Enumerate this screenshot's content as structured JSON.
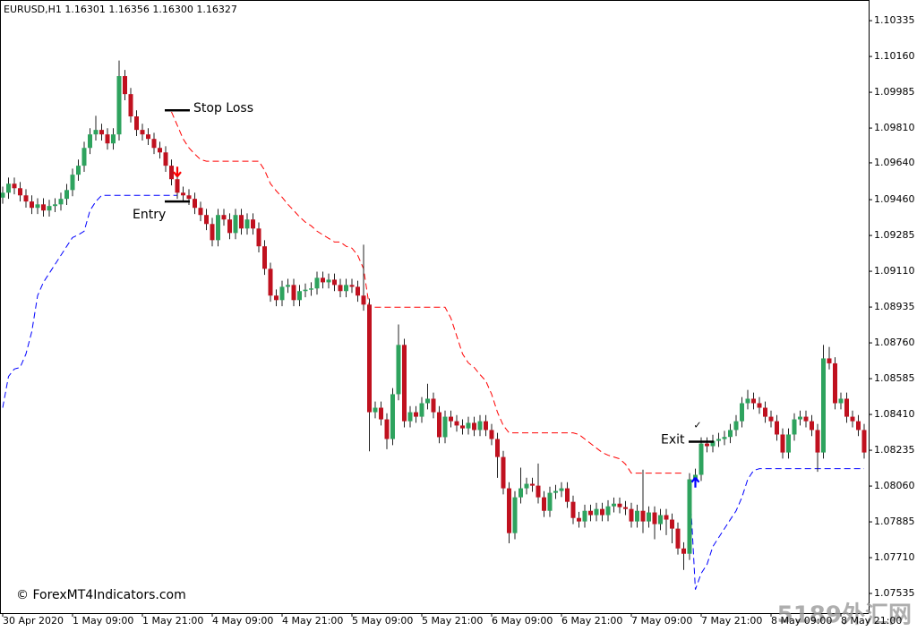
{
  "chart_data": {
    "type": "candlestick",
    "title": "EURUSD,H1  1.16301 1.16356 1.16300 1.16327",
    "up_color": "#2ea35e",
    "down_color": "#c0111f",
    "wick_color": "#222222",
    "ylim": [
      1.07439,
      1.10436
    ],
    "yticks": [
      1.10335,
      {
        "value": 1.1016,
        "label": "1.10160"
      },
      1.09985,
      {
        "value": 1.0981,
        "label": "1.09810"
      },
      {
        "value": 1.0964,
        "label": "1.09640"
      },
      {
        "value": 1.0946,
        "label": "1.09460"
      },
      1.09285,
      {
        "value": 1.0911,
        "label": "1.09110"
      },
      1.08935,
      {
        "value": 1.0876,
        "label": "1.08760"
      },
      1.08585,
      {
        "value": 1.0841,
        "label": "1.08410"
      },
      1.08235,
      {
        "value": 1.0806,
        "label": "1.08060"
      },
      1.07885,
      {
        "value": 1.0771,
        "label": "1.07710"
      },
      1.07535
    ],
    "categories": [
      "30 Apr 2020",
      null,
      null,
      null,
      null,
      null,
      null,
      null,
      null,
      null,
      null,
      null,
      "1 May 09:00",
      null,
      null,
      null,
      null,
      null,
      null,
      null,
      null,
      null,
      null,
      null,
      "1 May 21:00",
      null,
      null,
      null,
      null,
      null,
      null,
      null,
      null,
      null,
      null,
      null,
      "4 May 09:00",
      null,
      null,
      null,
      null,
      null,
      null,
      null,
      null,
      null,
      null,
      null,
      "4 May 21:00",
      null,
      null,
      null,
      null,
      null,
      null,
      null,
      null,
      null,
      null,
      null,
      "5 May 09:00",
      null,
      null,
      null,
      null,
      null,
      null,
      null,
      null,
      null,
      null,
      null,
      "5 May 21:00",
      null,
      null,
      null,
      null,
      null,
      null,
      null,
      null,
      null,
      null,
      null,
      "6 May 09:00",
      null,
      null,
      null,
      null,
      null,
      null,
      null,
      null,
      null,
      null,
      null,
      "6 May 21:00",
      null,
      null,
      null,
      null,
      null,
      null,
      null,
      null,
      null,
      null,
      null,
      "7 May 09:00",
      null,
      null,
      null,
      null,
      null,
      null,
      null,
      null,
      null,
      null,
      null,
      "7 May 21:00",
      null,
      null,
      null,
      null,
      null,
      null,
      null,
      null,
      null,
      null,
      null,
      "8 May 09:00",
      null,
      null,
      null,
      null,
      null,
      null,
      null,
      null,
      null,
      null,
      null,
      "8 May 21:00",
      null,
      null,
      null,
      null
    ],
    "open": [
      1.0947,
      1.09494,
      1.09538,
      1.09516,
      1.09481,
      1.09451,
      1.0942,
      1.09437,
      1.09407,
      1.09429,
      1.09437,
      1.09464,
      1.09507,
      1.09582,
      1.09626,
      1.09713,
      1.09779,
      1.09801,
      1.09779,
      1.09735,
      1.09779,
      1.10064,
      1.09976,
      1.09867,
      1.09801,
      1.09779,
      1.09757,
      1.09713,
      1.09691,
      1.09626,
      1.0956,
      1.09494,
      1.09481,
      1.09464,
      1.0942,
      1.09385,
      1.09341,
      1.09262,
      1.09385,
      1.09363,
      1.09297,
      1.09385,
      1.09319,
      1.09363,
      1.09319,
      1.09232,
      1.09122,
      1.08991,
      1.08969,
      1.09034,
      1.09043,
      1.08969,
      1.09013,
      1.0902,
      1.09026,
      1.09078,
      1.09056,
      1.09069,
      1.09043,
      1.09013,
      1.09043,
      1.09034,
      1.08991,
      1.08947,
      1.08421,
      1.08443,
      1.08386,
      1.0829,
      1.08509,
      1.0875,
      1.08377,
      1.08421,
      1.08399,
      1.08465,
      1.08487,
      1.08421,
      1.08299,
      1.08399,
      1.08377,
      1.08356,
      1.08342,
      1.08369,
      1.08334,
      1.08377,
      1.08334,
      1.0829,
      1.08202,
      1.08049,
      1.0783,
      1.08005,
      1.08049,
      1.08071,
      1.08062,
      1.08005,
      1.07939,
      1.08027,
      1.08036,
      1.08049,
      1.07983,
      1.07904,
      1.07887,
      1.07939,
      1.07918,
      1.07948,
      1.07918,
      1.07961,
      1.07974,
      1.07957,
      1.07948,
      1.07887,
      1.07939,
      1.07887,
      1.07931,
      1.07874,
      1.07918,
      1.07896,
      1.07852,
      1.07755,
      1.07729,
      1.08093,
      1.08115,
      1.08268,
      1.08255,
      1.08281,
      1.0829,
      1.083,
      1.08334,
      1.08377,
      1.08465,
      1.08487,
      1.08465,
      1.08443,
      1.08399,
      1.08377,
      1.08312,
      1.08224,
      1.08312,
      1.08386,
      1.08399,
      1.08377,
      1.08334,
      1.08224,
      1.08684,
      1.0866,
      1.08465,
      1.08487,
      1.08399,
      1.08377,
      1.08334
    ],
    "high": [
      1.09524,
      1.09568,
      1.09568,
      1.09546,
      1.09511,
      1.09481,
      1.09467,
      1.09467,
      1.09459,
      1.09467,
      1.09494,
      1.09537,
      1.09612,
      1.09656,
      1.09743,
      1.09809,
      1.0987,
      1.09831,
      1.09809,
      1.09809,
      1.1014,
      1.10094,
      1.10006,
      1.09897,
      1.09831,
      1.09809,
      1.09787,
      1.09743,
      1.09721,
      1.09656,
      1.0961,
      1.09524,
      1.09511,
      1.09494,
      1.0945,
      1.09415,
      1.09371,
      1.09415,
      1.09415,
      1.09393,
      1.09415,
      1.09415,
      1.09393,
      1.09393,
      1.09349,
      1.09262,
      1.09152,
      1.09021,
      1.09064,
      1.09073,
      1.09073,
      1.09043,
      1.0905,
      1.09056,
      1.09108,
      1.09108,
      1.09099,
      1.09099,
      1.09073,
      1.09073,
      1.09073,
      1.09064,
      1.0924,
      1.08977,
      1.08473,
      1.08473,
      1.08416,
      1.08539,
      1.0885,
      1.0878,
      1.08451,
      1.08451,
      1.08495,
      1.0856,
      1.08517,
      1.08451,
      1.08429,
      1.08429,
      1.08407,
      1.08386,
      1.08399,
      1.08399,
      1.08407,
      1.08407,
      1.08364,
      1.0832,
      1.08232,
      1.08079,
      1.08035,
      1.0815,
      1.08101,
      1.08101,
      1.0817,
      1.08035,
      1.08057,
      1.08066,
      1.08079,
      1.08079,
      1.08013,
      1.07934,
      1.07969,
      1.07969,
      1.07978,
      1.07978,
      1.07991,
      1.08004,
      1.08004,
      1.07987,
      1.07978,
      1.07969,
      1.0814,
      1.07961,
      1.07961,
      1.07948,
      1.07948,
      1.07926,
      1.07882,
      1.07785,
      1.08123,
      1.08145,
      1.08298,
      1.08298,
      1.08311,
      1.0832,
      1.0833,
      1.08364,
      1.08407,
      1.08495,
      1.0853,
      1.08517,
      1.08495,
      1.08473,
      1.08429,
      1.08407,
      1.08342,
      1.08342,
      1.08416,
      1.08429,
      1.08429,
      1.08407,
      1.08364,
      1.0875,
      1.0874,
      1.0869,
      1.08517,
      1.08517,
      1.08429,
      1.08407,
      1.08364
    ],
    "low": [
      1.0944,
      1.09464,
      1.09486,
      1.09451,
      1.09421,
      1.0939,
      1.0939,
      1.09377,
      1.09377,
      1.09399,
      1.09407,
      1.09434,
      1.09477,
      1.09552,
      1.09596,
      1.09683,
      1.09749,
      1.09749,
      1.09705,
      1.09705,
      1.09749,
      1.09946,
      1.09837,
      1.09771,
      1.09749,
      1.09727,
      1.09683,
      1.09661,
      1.09596,
      1.0953,
      1.09464,
      1.09451,
      1.09434,
      1.0939,
      1.09355,
      1.09311,
      1.09232,
      1.09232,
      1.09333,
      1.09267,
      1.09267,
      1.09289,
      1.09289,
      1.09289,
      1.09202,
      1.09092,
      1.08961,
      1.08939,
      1.08939,
      1.09004,
      1.08939,
      1.08939,
      1.08983,
      1.0899,
      1.08996,
      1.09026,
      1.09026,
      1.09013,
      1.08983,
      1.08983,
      1.09004,
      1.08961,
      1.08917,
      1.0823,
      1.08391,
      1.08356,
      1.0824,
      1.0826,
      1.08479,
      1.08347,
      1.08347,
      1.08369,
      1.08369,
      1.08435,
      1.08391,
      1.08269,
      1.08269,
      1.08347,
      1.08326,
      1.08312,
      1.08312,
      1.08304,
      1.08304,
      1.08304,
      1.0826,
      1.081,
      1.08019,
      1.0778,
      1.078,
      1.07975,
      1.08019,
      1.08032,
      1.07975,
      1.07909,
      1.07909,
      1.07997,
      1.08006,
      1.07953,
      1.07874,
      1.07857,
      1.07857,
      1.07888,
      1.07888,
      1.07888,
      1.07888,
      1.07931,
      1.07927,
      1.07918,
      1.07857,
      1.07857,
      1.0783,
      1.07857,
      1.078,
      1.07844,
      1.0782,
      1.0778,
      1.07725,
      1.0765,
      1.07699,
      1.08063,
      1.08085,
      1.08225,
      1.08225,
      1.08251,
      1.0826,
      1.0827,
      1.08304,
      1.08347,
      1.08435,
      1.08435,
      1.08413,
      1.08369,
      1.08347,
      1.08282,
      1.08194,
      1.08194,
      1.08282,
      1.08356,
      1.08347,
      1.08304,
      1.0813,
      1.08194,
      1.0863,
      1.08435,
      1.08435,
      1.08369,
      1.08347,
      1.08304,
      1.08194
    ],
    "close": [
      1.09494,
      1.09538,
      1.09516,
      1.09481,
      1.09451,
      1.0942,
      1.09437,
      1.09407,
      1.09429,
      1.09437,
      1.09464,
      1.09507,
      1.09582,
      1.09626,
      1.09713,
      1.09779,
      1.09801,
      1.09779,
      1.09735,
      1.09779,
      1.10064,
      1.09976,
      1.09867,
      1.09801,
      1.09779,
      1.09757,
      1.09713,
      1.09691,
      1.09626,
      1.0956,
      1.09494,
      1.09481,
      1.09464,
      1.0942,
      1.09385,
      1.09341,
      1.09262,
      1.09385,
      1.09363,
      1.09297,
      1.09385,
      1.09319,
      1.09363,
      1.09319,
      1.09232,
      1.09122,
      1.08991,
      1.08969,
      1.09034,
      1.09043,
      1.08969,
      1.09013,
      1.0902,
      1.09026,
      1.09078,
      1.09056,
      1.09069,
      1.09043,
      1.09013,
      1.09043,
      1.09034,
      1.08991,
      1.08947,
      1.08421,
      1.08443,
      1.08386,
      1.0829,
      1.08509,
      1.0875,
      1.08377,
      1.08421,
      1.08399,
      1.08465,
      1.08487,
      1.08421,
      1.08299,
      1.08399,
      1.08377,
      1.08356,
      1.08342,
      1.08369,
      1.08334,
      1.08377,
      1.08334,
      1.0829,
      1.08202,
      1.08049,
      1.0783,
      1.08005,
      1.08049,
      1.08071,
      1.08062,
      1.08005,
      1.07939,
      1.08027,
      1.08036,
      1.08049,
      1.07983,
      1.07904,
      1.07887,
      1.07939,
      1.07918,
      1.07948,
      1.07918,
      1.07961,
      1.07974,
      1.07957,
      1.07948,
      1.07887,
      1.07939,
      1.07887,
      1.07931,
      1.07874,
      1.07918,
      1.07896,
      1.07852,
      1.07755,
      1.07729,
      1.08093,
      1.08115,
      1.08268,
      1.08255,
      1.08281,
      1.0829,
      1.083,
      1.08334,
      1.08377,
      1.08465,
      1.08487,
      1.08465,
      1.08443,
      1.08399,
      1.08377,
      1.08312,
      1.08224,
      1.08312,
      1.08386,
      1.08399,
      1.08377,
      1.08334,
      1.08224,
      1.08684,
      1.0866,
      1.08465,
      1.08487,
      1.08399,
      1.08377,
      1.08334,
      1.08224
    ],
    "series": [
      {
        "color": "#ff0000",
        "values": [
          null,
          null,
          null,
          null,
          null,
          null,
          null,
          null,
          null,
          null,
          null,
          null,
          null,
          null,
          null,
          null,
          null,
          null,
          null,
          null,
          null,
          null,
          null,
          null,
          null,
          null,
          null,
          null,
          null,
          1.09889,
          1.09823,
          1.09757,
          1.09713,
          1.09683,
          1.09656,
          1.09648,
          1.09648,
          1.09648,
          1.09648,
          1.09648,
          1.09648,
          1.09648,
          1.09648,
          1.09648,
          1.09648,
          1.09604,
          1.09538,
          1.09503,
          1.09472,
          1.09437,
          1.09407,
          1.09376,
          1.0935,
          1.09332,
          1.09306,
          1.09288,
          1.09271,
          1.09253,
          1.09253,
          1.09232,
          1.09223,
          1.09188,
          1.09122,
          1.08934,
          1.08934,
          1.08934,
          1.08934,
          1.08934,
          1.08934,
          1.08934,
          1.08934,
          1.08934,
          1.08934,
          1.08934,
          1.08934,
          1.08934,
          1.08934,
          1.08881,
          1.08794,
          1.08706,
          1.08662,
          1.0864,
          1.08605,
          1.08574,
          1.08509,
          1.08421,
          1.08356,
          1.0832,
          1.0832,
          1.0832,
          1.0832,
          1.0832,
          1.0832,
          1.0832,
          1.0832,
          1.0832,
          1.0832,
          1.0832,
          1.0832,
          1.08312,
          1.0829,
          1.08268,
          1.08246,
          1.08224,
          1.08211,
          1.08202,
          1.08193,
          1.08167,
          1.08123,
          1.08123,
          1.08123,
          1.08123,
          1.08123,
          1.08123,
          1.08123,
          1.08123,
          1.08123,
          1.08123,
          null,
          null,
          null,
          null,
          null,
          null,
          null,
          null,
          null,
          null,
          null,
          null,
          null,
          null,
          null,
          null,
          null,
          null,
          null,
          null,
          null,
          null,
          null,
          null,
          null,
          null,
          null,
          null,
          null,
          null,
          null
        ]
      },
      {
        "color": "#0000ff",
        "values": [
          1.08443,
          1.08596,
          1.08632,
          1.0864,
          1.08706,
          1.08815,
          1.08991,
          1.09056,
          1.091,
          1.09144,
          1.09188,
          1.09232,
          1.09275,
          1.09288,
          1.09306,
          1.09407,
          1.09451,
          1.09481,
          1.09481,
          1.09481,
          1.09481,
          1.09481,
          1.09481,
          1.09481,
          1.09481,
          1.09481,
          1.09481,
          1.09481,
          1.09481,
          1.09481,
          1.09481,
          null,
          null,
          null,
          null,
          null,
          null,
          null,
          null,
          null,
          null,
          null,
          null,
          null,
          null,
          null,
          null,
          null,
          null,
          null,
          null,
          null,
          null,
          null,
          null,
          null,
          null,
          null,
          null,
          null,
          null,
          null,
          null,
          null,
          null,
          null,
          null,
          null,
          null,
          null,
          null,
          null,
          null,
          null,
          null,
          null,
          null,
          null,
          null,
          null,
          null,
          null,
          null,
          null,
          null,
          null,
          null,
          null,
          null,
          null,
          null,
          null,
          null,
          null,
          null,
          null,
          null,
          null,
          null,
          null,
          null,
          null,
          null,
          null,
          null,
          null,
          null,
          null,
          null,
          null,
          null,
          null,
          null,
          null,
          null,
          null,
          null,
          null,
          1.08093,
          1.07554,
          1.07633,
          1.07677,
          1.07764,
          1.07808,
          1.07852,
          1.07896,
          1.07939,
          1.08005,
          1.08093,
          1.08136,
          1.08145,
          1.08145,
          1.08145,
          1.08145,
          1.08145,
          1.08145,
          1.08145,
          1.08145,
          1.08145,
          1.08145,
          1.08145,
          1.08145,
          1.08145,
          1.08145,
          1.08145,
          1.08145,
          1.08145,
          1.08145,
          1.08145
        ]
      }
    ],
    "levels": [
      {
        "label": "Stop Loss",
        "value": 1.09897,
        "index": 30
      },
      {
        "label": "Entry",
        "value": 1.09451,
        "index": 30
      },
      {
        "label": "Exit",
        "value": 1.08277,
        "index": 120,
        "check": "✓"
      }
    ],
    "arrows": [
      {
        "index": 30,
        "value": 1.09573,
        "color": "#ff0000"
      },
      {
        "index": 119,
        "value": 1.08101,
        "color": "#0000ff"
      }
    ],
    "copyright": "© ForexMT4Indicators.com",
    "watermark": "5189外汇网"
  }
}
